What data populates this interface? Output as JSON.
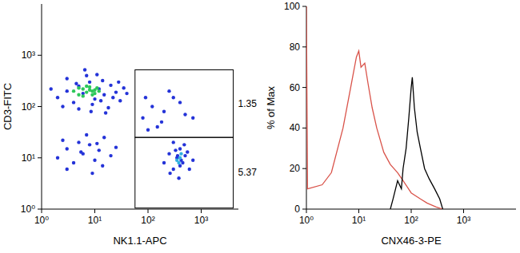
{
  "chart_data": [
    {
      "type": "scatter",
      "log": true,
      "x_label": "NK1.1-APC",
      "y_label": "CD3-FITC",
      "xlim": [
        1,
        5000
      ],
      "ylim": [
        1,
        10000
      ],
      "xticks": [
        {
          "value": 1,
          "label": "10⁰"
        },
        {
          "value": 10,
          "label": "10¹"
        },
        {
          "value": 100,
          "label": "10²"
        },
        {
          "value": 1000,
          "label": "10³"
        }
      ],
      "yticks": [
        {
          "value": 1,
          "label": "10⁰"
        },
        {
          "value": 10,
          "label": "10¹"
        },
        {
          "value": 100,
          "label": "10²"
        },
        {
          "value": 1000,
          "label": "10³"
        }
      ],
      "series": [
        {
          "color": "#2433d8",
          "x": [
            2,
            3,
            4,
            5,
            6,
            8,
            10,
            12,
            15,
            20,
            25,
            30,
            3,
            5,
            7,
            9,
            14,
            18,
            22,
            35,
            2.5,
            4.5,
            11,
            16,
            40,
            1.5,
            6.5,
            28,
            8.5,
            13,
            2,
            3,
            4,
            5,
            6,
            8,
            10,
            12,
            15,
            20,
            3,
            7,
            9,
            14,
            25,
            2.5,
            5.5,
            11,
            200,
            250,
            300,
            350,
            400,
            450,
            500,
            600,
            300,
            380,
            420,
            480,
            550,
            260,
            330,
            700,
            400,
            360,
            80,
            120,
            200,
            300,
            150,
            500,
            250,
            180,
            400,
            100,
            700,
            90
          ],
          "values": [
            150,
            200,
            120,
            250,
            180,
            300,
            140,
            220,
            170,
            260,
            190,
            130,
            350,
            90,
            400,
            110,
            320,
            95,
            150,
            230,
            100,
            280,
            420,
            75,
            180,
            220,
            520,
            300,
            80,
            130,
            10,
            15,
            8,
            20,
            12,
            18,
            9,
            14,
            25,
            11,
            6,
            28,
            5,
            7,
            16,
            22,
            13,
            19,
            8,
            12,
            6,
            10,
            15,
            8,
            11,
            6,
            20,
            4,
            9,
            18,
            13,
            5,
            14,
            9,
            7,
            11,
            60,
            100,
            80,
            150,
            40,
            70,
            200,
            50,
            120,
            35,
            60,
            150
          ]
        },
        {
          "color": "#2ec85a",
          "x": [
            4,
            5,
            6,
            7,
            8,
            9,
            10,
            11,
            6,
            8,
            12,
            5,
            7,
            9,
            10
          ],
          "values": [
            200,
            170,
            220,
            190,
            240,
            200,
            180,
            230,
            160,
            210,
            200,
            230,
            250,
            170,
            210
          ]
        },
        {
          "color": "#30b0e0",
          "x": [
            350,
            400,
            420,
            380
          ],
          "values": [
            9,
            10,
            12,
            8
          ]
        }
      ],
      "gates": [
        {
          "xlim": [
            57,
            4000
          ],
          "ylim": [
            25,
            520
          ],
          "label": "1.35"
        },
        {
          "xlim": [
            57,
            4000
          ],
          "ylim": [
            1.05,
            25
          ],
          "label": "5.37"
        }
      ]
    },
    {
      "type": "line",
      "log": "x",
      "x_label": "CNX46-3-PE",
      "y_label": "% of Max",
      "xlim": [
        1,
        10000
      ],
      "ylim": [
        0,
        100
      ],
      "xticks": [
        {
          "value": 1,
          "label": "10⁰"
        },
        {
          "value": 10,
          "label": "10¹"
        },
        {
          "value": 100,
          "label": "10²"
        },
        {
          "value": 1000,
          "label": "10³"
        }
      ],
      "yticks": [
        0,
        20,
        40,
        60,
        80,
        100
      ],
      "series": [
        {
          "color": "#d9534a",
          "x": [
            1,
            1.05,
            2,
            3,
            5,
            7,
            9,
            10,
            11,
            13,
            15,
            18,
            22,
            30,
            40,
            55,
            70,
            100,
            150,
            200,
            300,
            400
          ],
          "values": [
            100,
            10,
            12,
            18,
            40,
            60,
            75,
            78,
            70,
            72,
            62,
            50,
            40,
            28,
            22,
            18,
            14,
            8,
            5,
            3,
            1,
            0
          ]
        },
        {
          "color": "#000000",
          "x": [
            40,
            45,
            55,
            65,
            70,
            80,
            90,
            100,
            105,
            115,
            130,
            150,
            180,
            220,
            280,
            350,
            400
          ],
          "values": [
            0,
            5,
            14,
            10,
            20,
            30,
            45,
            60,
            65,
            50,
            38,
            30,
            20,
            15,
            10,
            5,
            0
          ]
        }
      ]
    }
  ]
}
